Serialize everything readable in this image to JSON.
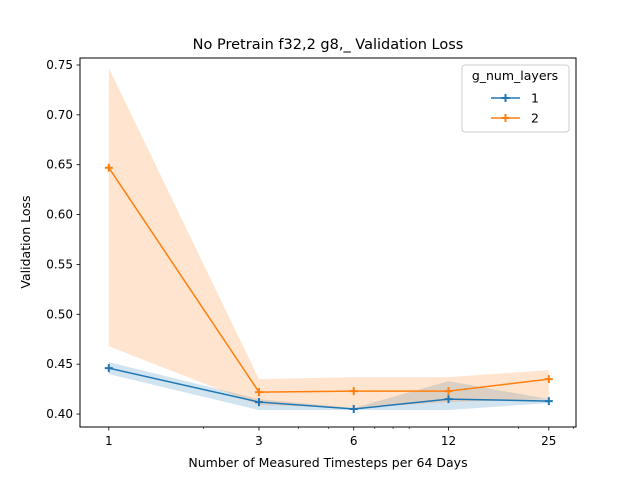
{
  "chart_data": {
    "type": "line",
    "title": "No Pretrain f32,2 g8,_ Validation Loss",
    "xlabel": "Number of Measured Timesteps per 64 Days",
    "ylabel": "Validation Loss",
    "x_scale": "log",
    "x": [
      1,
      3,
      6,
      12,
      25
    ],
    "x_tick_labels": [
      "1",
      "3",
      "6",
      "12",
      "25"
    ],
    "xlim": [
      0.81,
      30.5
    ],
    "ylim": [
      0.387,
      0.757
    ],
    "y_ticks": [
      0.4,
      0.45,
      0.5,
      0.55,
      0.6,
      0.65,
      0.7,
      0.75
    ],
    "y_tick_labels": [
      "0.40",
      "0.45",
      "0.50",
      "0.55",
      "0.60",
      "0.65",
      "0.70",
      "0.75"
    ],
    "grid": false,
    "legend": {
      "title": "g_num_layers",
      "placement": "top-right"
    },
    "series": [
      {
        "name": "1",
        "color": "#1f77b4",
        "values": [
          0.446,
          0.412,
          0.405,
          0.415,
          0.413
        ],
        "ci_lower": [
          0.44,
          0.404,
          0.404,
          0.404,
          0.411
        ],
        "ci_upper": [
          0.452,
          0.415,
          0.406,
          0.433,
          0.415
        ]
      },
      {
        "name": "2",
        "color": "#ff7f0e",
        "values": [
          0.647,
          0.422,
          0.423,
          0.423,
          0.435
        ],
        "ci_lower": [
          0.468,
          0.409,
          0.406,
          0.412,
          0.415
        ],
        "ci_upper": [
          0.747,
          0.435,
          0.437,
          0.437,
          0.444
        ]
      }
    ]
  }
}
